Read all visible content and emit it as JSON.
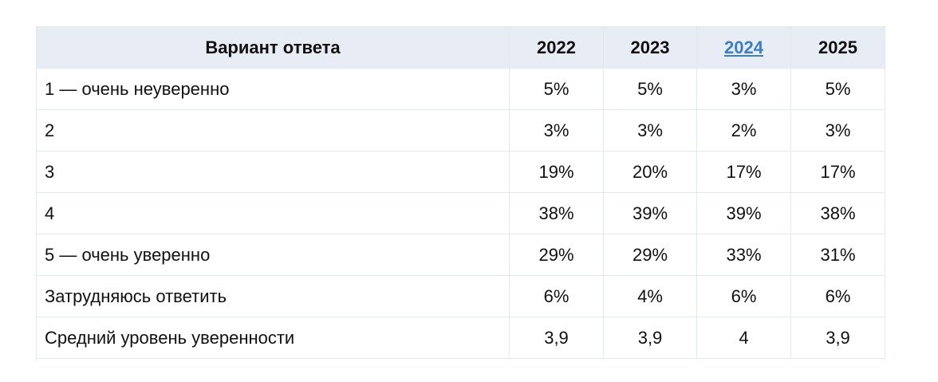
{
  "table": {
    "header": [
      "Вариант ответа",
      "2022",
      "2023",
      "2024",
      "2025"
    ],
    "rows": [
      [
        "1 — очень неуверенно",
        "5%",
        "5%",
        "3%",
        "5%"
      ],
      [
        "2",
        "3%",
        "3%",
        "2%",
        "3%"
      ],
      [
        "3",
        "19%",
        "20%",
        "17%",
        "17%"
      ],
      [
        "4",
        "38%",
        "39%",
        "39%",
        "38%"
      ],
      [
        "5 — очень уверенно",
        "29%",
        "29%",
        "33%",
        "31%"
      ],
      [
        "Затрудняюсь ответить",
        "6%",
        "4%",
        "6%",
        "6%"
      ],
      [
        "Средний уровень уверенности",
        "3,9",
        "3,9",
        "4",
        "3,9"
      ]
    ]
  }
}
